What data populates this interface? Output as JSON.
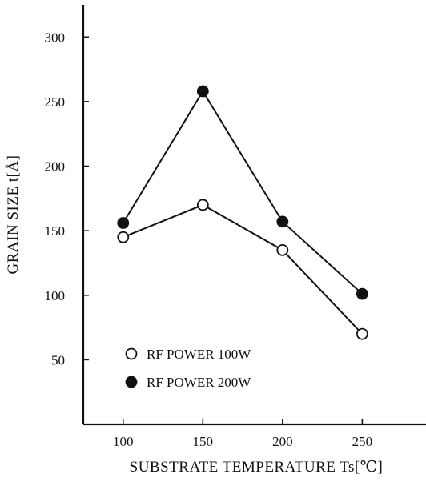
{
  "chart_data": {
    "type": "line",
    "title": "",
    "xlabel": "SUBSTRATE TEMPERATURE Ts[℃]",
    "ylabel": "GRAIN SIZE t[Å]",
    "x": [
      100,
      150,
      200,
      250
    ],
    "xlim": [
      75,
      290
    ],
    "ylim": [
      0,
      325
    ],
    "xticks": [
      100,
      150,
      200,
      250
    ],
    "yticks": [
      50,
      100,
      150,
      200,
      250,
      300
    ],
    "grid": false,
    "legend_position": "lower-left",
    "series": [
      {
        "name": "RF POWER 100W",
        "marker": "open-circle",
        "values": [
          145,
          170,
          135,
          70
        ]
      },
      {
        "name": "RF POWER 200W",
        "marker": "filled-circle",
        "values": [
          156,
          258,
          157,
          101
        ]
      }
    ],
    "colors": {
      "line": "#111111",
      "open_fill": "#ffffff",
      "filled_fill": "#111111"
    }
  }
}
